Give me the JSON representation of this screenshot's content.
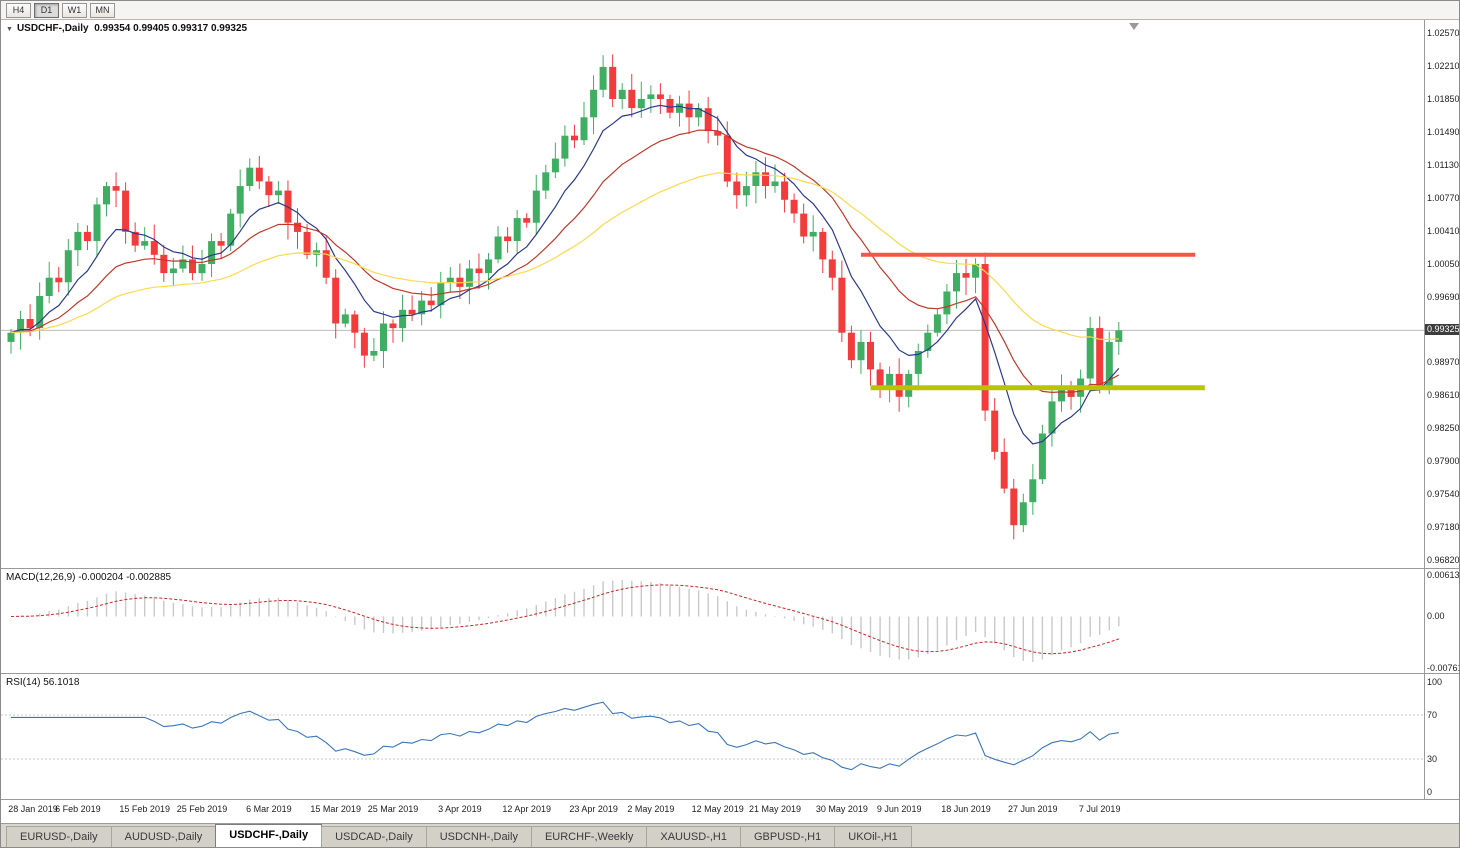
{
  "colors": {
    "up": "#3fae62",
    "down": "#f23b3b",
    "ma_fast": "#2b3990",
    "ma_mid": "#bf3a2b",
    "ma_slow": "#ffd94d",
    "hline_red": "#f4564a",
    "hline_olive": "#b8c400",
    "macd_hist": "#c9c9c9",
    "macd_signal": "#cf2525",
    "rsi_line": "#3b76b9",
    "price_tag_bg": "#3d3d3d",
    "price_tag_fg": "#ffffff",
    "current_price_line": "#bbbbbb"
  },
  "toolbar": {
    "buttons": [
      {
        "label": "H4",
        "active": false
      },
      {
        "label": "D1",
        "active": true
      },
      {
        "label": "W1",
        "active": false
      },
      {
        "label": "MN",
        "active": false
      }
    ]
  },
  "main_chart": {
    "collapse_icon": "▼",
    "title": "USDCHF-,Daily",
    "ohlc_text": "0.99354 0.99405 0.99317 0.99325",
    "price_axis_labels": [
      "1.02570",
      "1.02210",
      "1.01850",
      "1.01490",
      "1.01130",
      "1.00770",
      "1.00410",
      "1.00050",
      "0.99690",
      "0.98970",
      "0.98610",
      "0.98250",
      "0.97900",
      "0.97540",
      "0.97180",
      "0.96820"
    ],
    "current_price_label": "0.99325"
  },
  "macd_panel": {
    "label": "MACD(12,26,9) -0.000204 -0.002885",
    "axis_labels": [
      "0.00613",
      "0.00",
      "-0.00761"
    ]
  },
  "rsi_panel": {
    "label": "RSI(14) 56.1018",
    "axis_labels": [
      "100",
      "70",
      "30",
      "0"
    ]
  },
  "tabs": [
    {
      "label": "EURUSD-,Daily",
      "active": false
    },
    {
      "label": "AUDUSD-,Daily",
      "active": false
    },
    {
      "label": "USDCHF-,Daily",
      "active": true
    },
    {
      "label": "USDCAD-,Daily",
      "active": false
    },
    {
      "label": "USDCNH-,Daily",
      "active": false
    },
    {
      "label": "EURCHF-,Weekly",
      "active": false
    },
    {
      "label": "XAUUSD-,H1",
      "active": false
    },
    {
      "label": "GBPUSD-,H1",
      "active": false
    },
    {
      "label": "UKOil-,H1",
      "active": false
    }
  ],
  "chart_data": {
    "type": "candlestick",
    "symbol": "USDCHF",
    "timeframe": "Daily",
    "ylim": [
      0.9682,
      1.0257
    ],
    "current_price": 0.99325,
    "first_open": 0.992,
    "closes": [
      0.993,
      0.9945,
      0.9935,
      0.997,
      0.999,
      0.9985,
      1.002,
      1.004,
      1.003,
      1.007,
      1.009,
      1.0085,
      1.004,
      1.0025,
      1.003,
      1.0015,
      0.9995,
      1.0,
      1.001,
      0.9995,
      1.0005,
      1.003,
      1.0025,
      1.006,
      1.009,
      1.011,
      1.0095,
      1.008,
      1.0085,
      1.005,
      1.004,
      1.0015,
      1.002,
      0.999,
      0.994,
      0.995,
      0.993,
      0.9905,
      0.991,
      0.994,
      0.9935,
      0.9955,
      0.995,
      0.9965,
      0.996,
      0.9985,
      0.999,
      0.998,
      1.0,
      0.9995,
      1.001,
      1.0035,
      1.003,
      1.0055,
      1.005,
      1.0085,
      1.0105,
      1.012,
      1.0145,
      1.014,
      1.0165,
      1.0195,
      1.022,
      1.0185,
      1.0195,
      1.0175,
      1.0185,
      1.019,
      1.0185,
      1.017,
      1.018,
      1.0165,
      1.0175,
      1.015,
      1.0145,
      1.0095,
      1.008,
      1.009,
      1.0105,
      1.009,
      1.0095,
      1.0075,
      1.006,
      1.0035,
      1.004,
      1.001,
      0.999,
      0.993,
      0.99,
      0.992,
      0.989,
      0.987,
      0.9885,
      0.986,
      0.9885,
      0.991,
      0.993,
      0.995,
      0.9975,
      0.9995,
      0.999,
      1.0005,
      0.9845,
      0.98,
      0.976,
      0.972,
      0.9745,
      0.977,
      0.982,
      0.9855,
      0.987,
      0.986,
      0.988,
      0.9935,
      0.987,
      0.992,
      0.99325
    ],
    "x_labels": [
      "28 Jan 2019",
      "6 Feb 2019",
      "15 Feb 2019",
      "25 Feb 2019",
      "6 Mar 2019",
      "15 Mar 2019",
      "25 Mar 2019",
      "3 Apr 2019",
      "12 Apr 2019",
      "23 Apr 2019",
      "2 May 2019",
      "12 May 2019",
      "21 May 2019",
      "30 May 2019",
      "9 Jun 2019",
      "18 Jun 2019",
      "27 Jun 2019",
      "7 Jul 2019"
    ],
    "x_label_indices": [
      0,
      7,
      14,
      20,
      27,
      34,
      40,
      47,
      54,
      61,
      67,
      74,
      80,
      87,
      93,
      100,
      107,
      114
    ],
    "hlines": [
      {
        "name": "resistance",
        "price": 1.0015,
        "from_index": 89,
        "to_index": 124,
        "color_key": "hline_red",
        "width": 4
      },
      {
        "name": "support",
        "price": 0.987,
        "from_index": 90,
        "to_index": 125,
        "color_key": "hline_olive",
        "width": 5
      }
    ],
    "moving_averages": [
      {
        "type": "EMA",
        "period": 8,
        "color_key": "ma_fast"
      },
      {
        "type": "EMA",
        "period": 18,
        "color_key": "ma_mid"
      },
      {
        "type": "EMA",
        "period": 40,
        "color_key": "ma_slow"
      }
    ],
    "indicators": {
      "macd": {
        "fast": 12,
        "slow": 26,
        "signal": 9,
        "display": "-0.000204 -0.002885",
        "scale_max": 0.00613,
        "scale_min": -0.00761
      },
      "rsi": {
        "period": 14,
        "display": "56.1018",
        "levels": [
          100,
          70,
          30,
          0
        ]
      }
    }
  }
}
